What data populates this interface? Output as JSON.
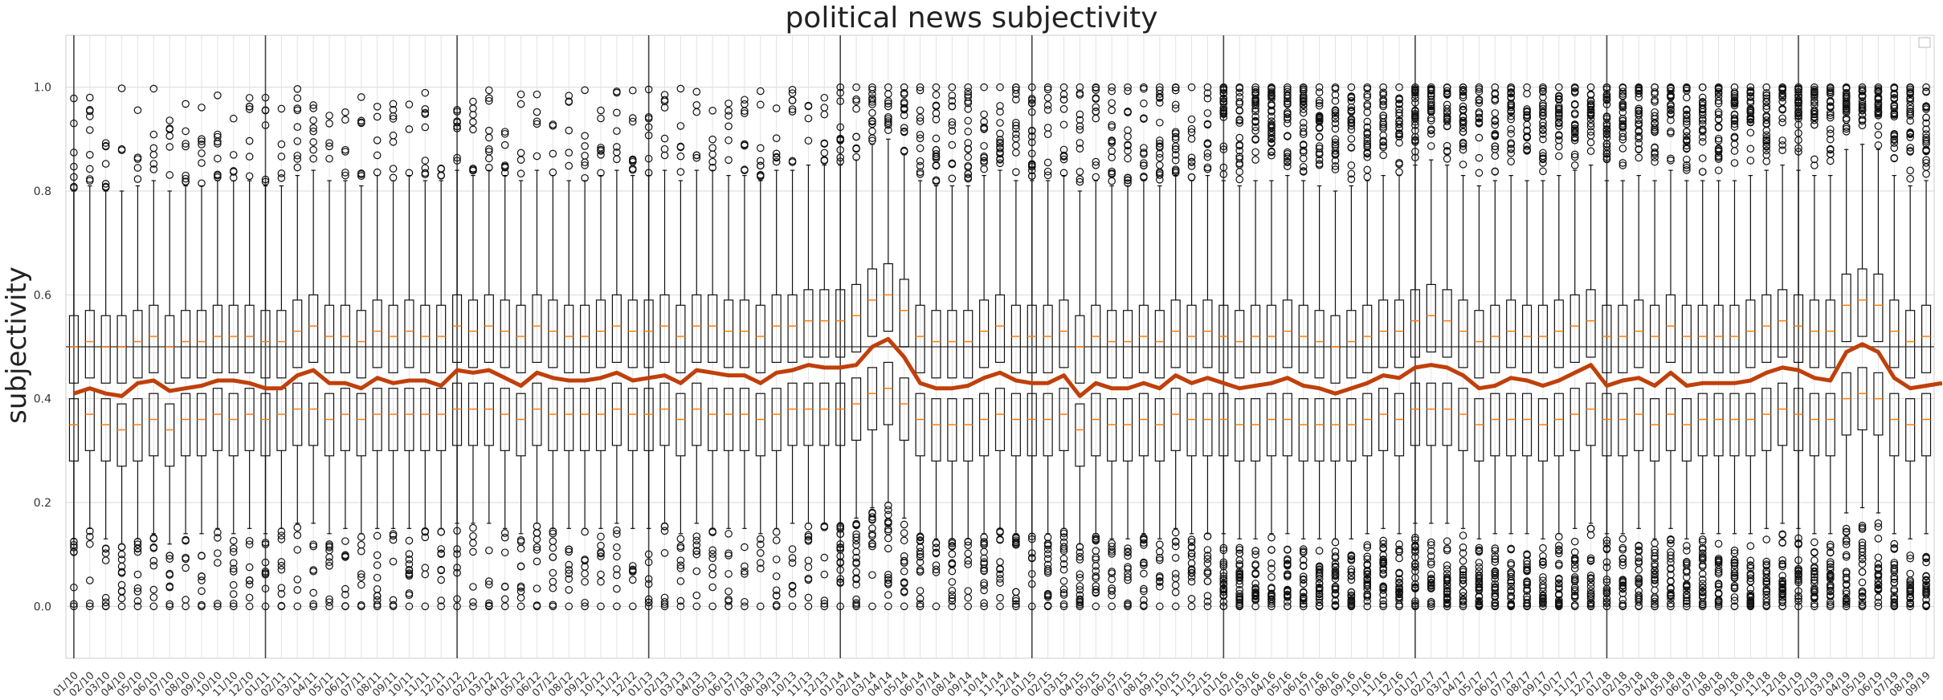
{
  "chart_data": {
    "type": "box",
    "title": "political news subjectivity",
    "xlabel": "",
    "ylabel": "subjectivity",
    "ylim": [
      -0.1,
      1.1
    ],
    "yticks": [
      "0.0",
      "0.2",
      "0.4",
      "0.6",
      "0.8",
      "1.0"
    ],
    "ytick_values": [
      0.0,
      0.2,
      0.4,
      0.6,
      0.8,
      1.0
    ],
    "grid": true,
    "legend": "top-right (empty)",
    "reference_line_y": 0.5,
    "year_separator_indices": [
      0,
      12,
      24,
      36,
      48,
      60,
      72,
      84,
      96,
      108
    ],
    "categories": [
      "01/10",
      "02/10",
      "03/10",
      "04/10",
      "05/10",
      "06/10",
      "07/10",
      "08/10",
      "09/10",
      "10/10",
      "11/10",
      "12/10",
      "01/11",
      "02/11",
      "03/11",
      "04/11",
      "05/11",
      "06/11",
      "07/11",
      "08/11",
      "09/11",
      "10/11",
      "11/11",
      "12/11",
      "01/12",
      "02/12",
      "03/12",
      "04/12",
      "05/12",
      "06/12",
      "07/12",
      "08/12",
      "09/12",
      "10/12",
      "11/12",
      "12/12",
      "01/13",
      "02/13",
      "03/13",
      "04/13",
      "05/13",
      "06/13",
      "07/13",
      "08/13",
      "09/13",
      "10/13",
      "11/13",
      "12/13",
      "01/14",
      "02/14",
      "03/14",
      "04/14",
      "05/14",
      "06/14",
      "07/14",
      "08/14",
      "09/14",
      "10/14",
      "11/14",
      "12/14",
      "01/15",
      "02/15",
      "03/15",
      "04/15",
      "05/15",
      "06/15",
      "07/15",
      "08/15",
      "09/15",
      "10/15",
      "11/15",
      "12/15",
      "01/16",
      "02/16",
      "03/16",
      "04/16",
      "05/16",
      "06/16",
      "07/16",
      "08/16",
      "09/16",
      "10/16",
      "11/16",
      "12/16",
      "01/17",
      "02/17",
      "03/17",
      "04/17",
      "05/17",
      "06/17",
      "07/17",
      "08/17",
      "09/17",
      "10/17",
      "11/17",
      "12/17",
      "01/18",
      "02/18",
      "03/18",
      "04/18",
      "05/18",
      "06/18",
      "07/18",
      "08/18",
      "09/18",
      "10/18",
      "11/18",
      "12/18",
      "01/19",
      "02/19",
      "03/19",
      "04/19",
      "05/19",
      "06/19",
      "07/19",
      "08/19",
      "09/19"
    ],
    "mean_series": {
      "color": "#c0400a",
      "values": [
        0.41,
        0.42,
        0.41,
        0.405,
        0.43,
        0.435,
        0.415,
        0.42,
        0.425,
        0.435,
        0.435,
        0.43,
        0.42,
        0.42,
        0.445,
        0.455,
        0.43,
        0.43,
        0.42,
        0.44,
        0.43,
        0.435,
        0.435,
        0.425,
        0.455,
        0.45,
        0.455,
        0.44,
        0.425,
        0.45,
        0.44,
        0.435,
        0.435,
        0.44,
        0.45,
        0.435,
        0.44,
        0.445,
        0.43,
        0.455,
        0.45,
        0.445,
        0.445,
        0.43,
        0.45,
        0.455,
        0.465,
        0.46,
        0.46,
        0.465,
        0.5,
        0.515,
        0.48,
        0.43,
        0.42,
        0.42,
        0.425,
        0.44,
        0.45,
        0.435,
        0.43,
        0.43,
        0.445,
        0.405,
        0.43,
        0.42,
        0.42,
        0.43,
        0.42,
        0.445,
        0.43,
        0.44,
        0.43,
        0.42,
        0.425,
        0.43,
        0.44,
        0.425,
        0.42,
        0.41,
        0.42,
        0.43,
        0.445,
        0.44,
        0.46,
        0.465,
        0.46,
        0.445,
        0.42,
        0.425,
        0.44,
        0.435,
        0.425,
        0.435,
        0.45,
        0.465,
        0.425,
        0.435,
        0.44,
        0.425,
        0.45,
        0.425,
        0.43,
        0.43,
        0.43,
        0.435,
        0.45,
        0.46,
        0.455,
        0.44,
        0.435,
        0.49,
        0.505,
        0.49,
        0.44,
        0.42,
        0.425,
        0.43
      ]
    },
    "box_series": {
      "lower": {
        "q1": [
          0.28,
          0.3,
          0.28,
          0.27,
          0.28,
          0.29,
          0.27,
          0.29,
          0.29,
          0.3,
          0.29,
          0.3,
          0.29,
          0.3,
          0.31,
          0.31,
          0.29,
          0.3,
          0.29,
          0.3,
          0.3,
          0.3,
          0.3,
          0.3,
          0.31,
          0.31,
          0.31,
          0.3,
          0.29,
          0.31,
          0.3,
          0.3,
          0.3,
          0.3,
          0.31,
          0.3,
          0.3,
          0.31,
          0.29,
          0.31,
          0.3,
          0.3,
          0.3,
          0.29,
          0.3,
          0.31,
          0.31,
          0.31,
          0.31,
          0.32,
          0.34,
          0.35,
          0.32,
          0.29,
          0.28,
          0.28,
          0.28,
          0.29,
          0.3,
          0.29,
          0.29,
          0.29,
          0.3,
          0.27,
          0.29,
          0.28,
          0.28,
          0.29,
          0.28,
          0.3,
          0.29,
          0.29,
          0.29,
          0.28,
          0.28,
          0.29,
          0.29,
          0.28,
          0.28,
          0.28,
          0.28,
          0.29,
          0.3,
          0.29,
          0.31,
          0.31,
          0.31,
          0.3,
          0.28,
          0.29,
          0.29,
          0.29,
          0.28,
          0.29,
          0.3,
          0.31,
          0.29,
          0.29,
          0.3,
          0.28,
          0.3,
          0.28,
          0.29,
          0.29,
          0.29,
          0.29,
          0.3,
          0.31,
          0.3,
          0.29,
          0.29,
          0.33,
          0.34,
          0.33,
          0.29,
          0.28,
          0.29,
          0.29
        ],
        "median_offset": 0.07,
        "q3_offset": 0.12,
        "whisker_low": 0.15
      },
      "upper": {
        "q1": [
          0.43,
          0.44,
          0.43,
          0.43,
          0.44,
          0.45,
          0.43,
          0.44,
          0.44,
          0.45,
          0.45,
          0.45,
          0.44,
          0.44,
          0.46,
          0.47,
          0.45,
          0.45,
          0.44,
          0.46,
          0.45,
          0.46,
          0.45,
          0.45,
          0.47,
          0.46,
          0.47,
          0.46,
          0.45,
          0.47,
          0.46,
          0.45,
          0.45,
          0.46,
          0.47,
          0.46,
          0.46,
          0.47,
          0.45,
          0.47,
          0.47,
          0.46,
          0.46,
          0.45,
          0.47,
          0.47,
          0.48,
          0.48,
          0.48,
          0.49,
          0.52,
          0.53,
          0.5,
          0.45,
          0.44,
          0.44,
          0.44,
          0.46,
          0.47,
          0.45,
          0.45,
          0.45,
          0.46,
          0.43,
          0.45,
          0.44,
          0.44,
          0.45,
          0.44,
          0.46,
          0.45,
          0.46,
          0.45,
          0.44,
          0.45,
          0.45,
          0.46,
          0.45,
          0.44,
          0.43,
          0.44,
          0.45,
          0.46,
          0.46,
          0.48,
          0.49,
          0.48,
          0.46,
          0.44,
          0.45,
          0.46,
          0.45,
          0.45,
          0.46,
          0.47,
          0.48,
          0.45,
          0.45,
          0.46,
          0.45,
          0.47,
          0.45,
          0.45,
          0.45,
          0.45,
          0.46,
          0.47,
          0.48,
          0.47,
          0.46,
          0.46,
          0.51,
          0.52,
          0.51,
          0.46,
          0.44,
          0.45,
          0.45
        ],
        "median_offset": 0.07,
        "q3_offset": 0.13,
        "whisker_high": 0.24
      },
      "median_color": "#ff7f0e"
    }
  }
}
